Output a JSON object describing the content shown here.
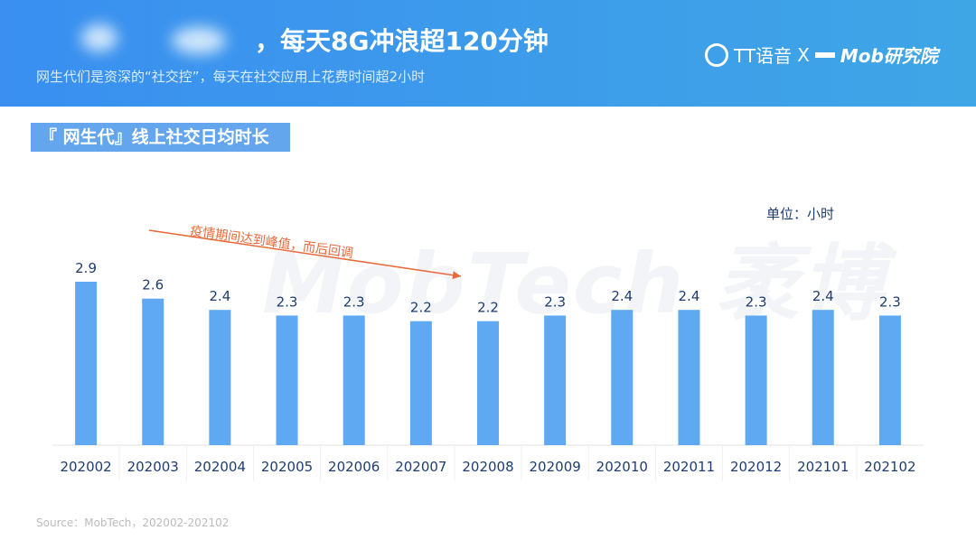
{
  "header": {
    "title": "，每天8G冲浪超120分钟",
    "subtitle": "网生代们是资深的“社交控”，每天在社交应用上花费时间超2小时",
    "logo_tt": "TT语音",
    "logo_x": "X",
    "logo_mob": "Mob研究院"
  },
  "section_title": "『 网生代』线上社交日均时长",
  "watermark": "MobTech 袤博",
  "source": "Source：MobTech，202002-202102",
  "chart_data": {
    "type": "bar",
    "title": "",
    "unit_label": "单位：小时",
    "categories": [
      "202002",
      "202003",
      "202004",
      "202005",
      "202006",
      "202007",
      "202008",
      "202009",
      "202010",
      "202011",
      "202012",
      "202101",
      "202102"
    ],
    "values": [
      2.9,
      2.6,
      2.4,
      2.3,
      2.3,
      2.2,
      2.2,
      2.3,
      2.4,
      2.4,
      2.3,
      2.4,
      2.3
    ],
    "ylim": [
      0,
      3.2
    ],
    "grid": false,
    "bar_color": "#5fa8f2",
    "annotation": "疫情期间达到峰值，而后回调",
    "annotation_color": "#e8693a"
  }
}
